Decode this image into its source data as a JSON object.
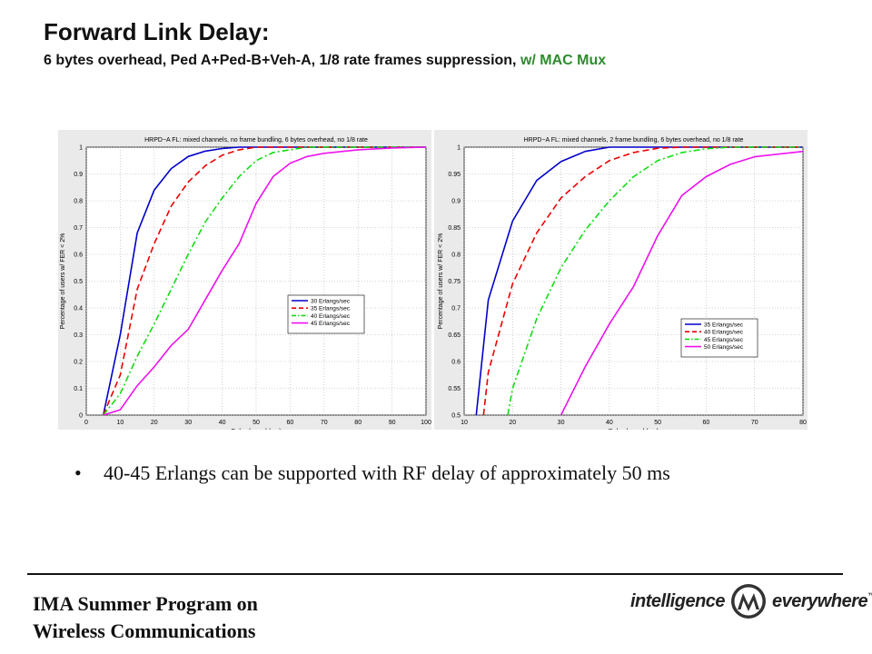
{
  "slide": {
    "title": "Forward Link Delay:",
    "subtitle_main": "6 bytes overhead, Ped A+Ped-B+Veh-A, 1/8 rate frames suppression, ",
    "subtitle_mac": "w/ MAC Mux",
    "bullet_symbol": "•",
    "bullet": "40-45 Erlangs can be supported with RF delay of approximately 50 ms",
    "footer_line1": "IMA Summer Program on",
    "footer_line2": "Wireless Communications",
    "brand_left": "intelligence",
    "brand_right": "everywhere",
    "brand_tm": "™",
    "colors": {
      "blue": "#0000cc",
      "red": "#ee0000",
      "green": "#11dd11",
      "magenta": "#ee11ee",
      "mac_mux": "#2e8b2e"
    }
  },
  "chart_data": [
    {
      "type": "line",
      "title": "HRPD−A FL: mixed channels, no frame bundling, 6 bytes overhead, no 1/8 rate",
      "xlabel": "Delay bound (ms)",
      "ylabel": "Percentage of users w/ FER < 2%",
      "xlim": [
        0,
        100
      ],
      "ylim": [
        0,
        1
      ],
      "xticks": [
        0,
        10,
        20,
        30,
        40,
        50,
        60,
        70,
        80,
        90,
        100
      ],
      "yticks": [
        0,
        0.1,
        0.2,
        0.3,
        0.4,
        0.5,
        0.6,
        0.7,
        0.8,
        0.9,
        1
      ],
      "grid": true,
      "legend_position": "lower-right",
      "series": [
        {
          "name": "30 Erlangs/sec",
          "color": "#0000cc",
          "style": "solid",
          "x": [
            5,
            10,
            15,
            20,
            25,
            30,
            35,
            40,
            45,
            50,
            60,
            70,
            80,
            90,
            100
          ],
          "y": [
            0,
            0.3,
            0.68,
            0.84,
            0.92,
            0.965,
            0.985,
            0.995,
            1,
            1,
            1,
            1,
            1,
            1,
            1
          ]
        },
        {
          "name": "35 Erlangs/sec",
          "color": "#ee0000",
          "style": "dashed",
          "x": [
            5,
            10,
            15,
            20,
            25,
            30,
            35,
            40,
            45,
            50,
            55,
            60,
            70,
            80,
            90,
            100
          ],
          "y": [
            0,
            0.15,
            0.47,
            0.64,
            0.78,
            0.87,
            0.93,
            0.97,
            0.99,
            1,
            1,
            1,
            1,
            1,
            1,
            1
          ]
        },
        {
          "name": "40 Erlangs/sec",
          "color": "#11dd11",
          "style": "dashdot",
          "x": [
            5,
            10,
            15,
            20,
            25,
            30,
            35,
            40,
            45,
            50,
            55,
            60,
            65,
            70,
            80,
            90,
            100
          ],
          "y": [
            0,
            0.08,
            0.22,
            0.34,
            0.47,
            0.6,
            0.72,
            0.81,
            0.89,
            0.95,
            0.98,
            0.99,
            1,
            1,
            1,
            1,
            1
          ]
        },
        {
          "name": "45 Erlangs/sec",
          "color": "#ee11ee",
          "style": "solid",
          "x": [
            5,
            10,
            15,
            20,
            25,
            30,
            35,
            40,
            45,
            50,
            55,
            60,
            65,
            70,
            80,
            90,
            100
          ],
          "y": [
            0,
            0.02,
            0.11,
            0.18,
            0.26,
            0.32,
            0.43,
            0.54,
            0.64,
            0.79,
            0.89,
            0.94,
            0.965,
            0.977,
            0.99,
            0.997,
            1
          ]
        }
      ]
    },
    {
      "type": "line",
      "title": "HRPD−A FL: mixed channels, 2 frame bundling, 6 bytes overhead, no 1/8 rate",
      "xlabel": "Delay bound (ms)",
      "ylabel": "Percentage of users w/ FER < 2%",
      "xlim": [
        10,
        80
      ],
      "ylim": [
        0.5,
        1
      ],
      "xticks": [
        10,
        20,
        30,
        40,
        50,
        60,
        70,
        80
      ],
      "yticks": [
        0.5,
        0.55,
        0.6,
        0.65,
        0.7,
        0.75,
        0.8,
        0.85,
        0.9,
        0.95,
        1
      ],
      "grid": true,
      "legend_position": "lower-right",
      "series": [
        {
          "name": "35 Erlangs/sec",
          "color": "#0000cc",
          "style": "solid",
          "x": [
            12.5,
            15,
            20,
            25,
            30,
            35,
            40,
            45,
            50,
            60,
            70,
            80
          ],
          "y": [
            0.5,
            0.715,
            0.862,
            0.938,
            0.973,
            0.992,
            1,
            1,
            1,
            1,
            1,
            1
          ]
        },
        {
          "name": "40 Erlangs/sec",
          "color": "#ee0000",
          "style": "dashed",
          "x": [
            14,
            15,
            20,
            25,
            30,
            35,
            40,
            45,
            50,
            55,
            60,
            70,
            80
          ],
          "y": [
            0.5,
            0.58,
            0.745,
            0.84,
            0.905,
            0.945,
            0.975,
            0.99,
            0.998,
            1,
            1,
            1,
            1
          ]
        },
        {
          "name": "45 Erlangs/sec",
          "color": "#11dd11",
          "style": "dashdot",
          "x": [
            19,
            20,
            25,
            30,
            35,
            40,
            45,
            50,
            55,
            60,
            65,
            70,
            80
          ],
          "y": [
            0.5,
            0.55,
            0.68,
            0.775,
            0.845,
            0.9,
            0.945,
            0.975,
            0.99,
            0.997,
            1,
            1,
            1
          ]
        },
        {
          "name": "50 Erlangs/sec",
          "color": "#ee11ee",
          "style": "solid",
          "x": [
            30,
            35,
            40,
            45,
            50,
            55,
            60,
            65,
            70,
            80
          ],
          "y": [
            0.5,
            0.59,
            0.67,
            0.74,
            0.835,
            0.91,
            0.945,
            0.968,
            0.982,
            0.992
          ]
        }
      ]
    }
  ]
}
